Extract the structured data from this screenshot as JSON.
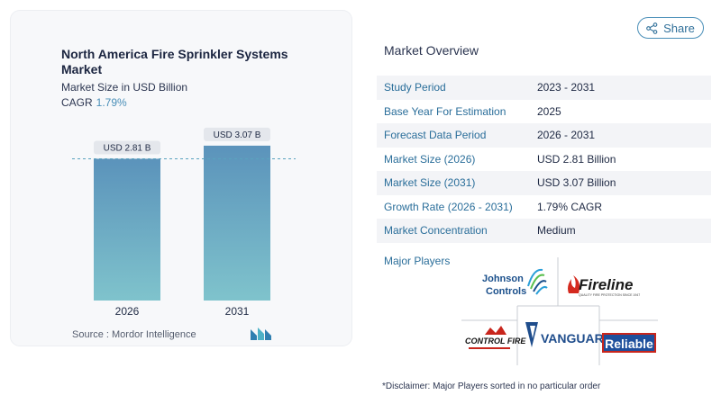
{
  "left": {
    "title": "North America Fire Sprinkler Systems Market",
    "subtitle": "Market Size in USD Billion",
    "cagr_label": "CAGR",
    "cagr_value": "1.79%",
    "source": "Source :  Mordor Intelligence"
  },
  "chart_data": {
    "type": "bar",
    "categories": [
      "2026",
      "2031"
    ],
    "values": [
      2.81,
      3.07
    ],
    "data_labels": [
      "USD 2.81 B",
      "USD 3.07 B"
    ],
    "title": "North America Fire Sprinkler Systems Market",
    "ylabel": "",
    "xlabel": "",
    "ylim": [
      0,
      3.3
    ],
    "colors": {
      "bar_top": "#5b93bb",
      "bar_bottom": "#7fc3cc",
      "reference_line": "#5aa3bf"
    },
    "reference_line": "dashed line at 2026 value"
  },
  "share": {
    "label": "Share",
    "icon": "share-icon"
  },
  "overview": {
    "title": "Market Overview",
    "rows": [
      {
        "key": "Study Period",
        "value": "2023 - 2031"
      },
      {
        "key": "Base Year For Estimation",
        "value": "2025"
      },
      {
        "key": "Forecast Data Period",
        "value": "2026 - 2031"
      },
      {
        "key": "Market Size (2026)",
        "value": "USD 2.81 Billion"
      },
      {
        "key": "Market Size (2031)",
        "value": "USD 3.07 Billion"
      },
      {
        "key": "Growth Rate (2026 - 2031)",
        "value": "1.79% CAGR"
      },
      {
        "key": "Market Concentration",
        "value": "Medium"
      }
    ]
  },
  "players": {
    "title": "Major Players",
    "logos": {
      "johnson_line1": "Johnson",
      "johnson_line2": "Controls",
      "fireline": "Fireline",
      "fireline_tag": "QUALITY FIRE PROTECTION SINCE 1947",
      "controlfire": "CONTROL FIRE",
      "vanguard": "VANGUARD",
      "reliable": "Reliable"
    }
  },
  "disclaimer": "*Disclaimer: Major Players sorted in no particular order"
}
